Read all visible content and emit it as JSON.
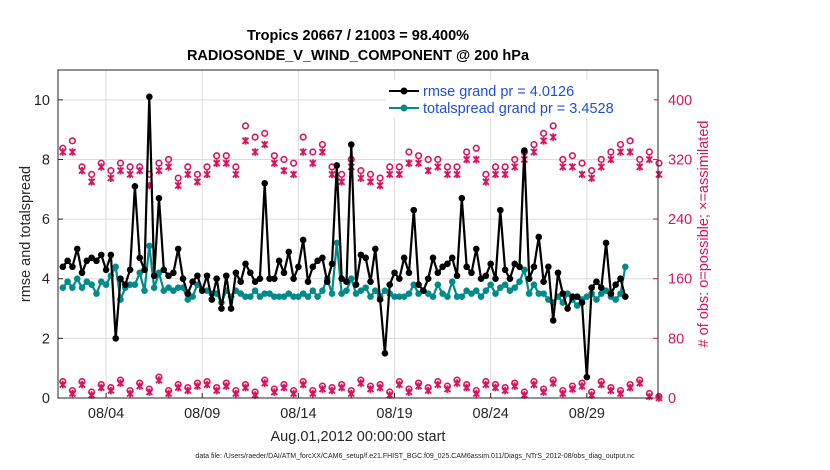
{
  "chart_data": {
    "type": "line",
    "title": "Tropics 20667 / 21003 = 98.400%",
    "subtitle": "RADIOSONDE_V_WIND_COMPONENT @ 200 hPa",
    "xlabel": "Aug.01,2012 00:00:00 start",
    "ylabel_left": "rmse and totalspread",
    "ylabel_right": "# of obs: o=possible; ×=assimilated",
    "footer": "data file: /Users/raeder/DAI/ATM_forcXX/CAM6_setup/f.e21.FHIST_BGC.f09_025.CAM6assim.011/Diags_NTrS_2012-08/obs_diag_output.nc",
    "xlim": [
      1,
      32.2
    ],
    "ylim_left": [
      0,
      11
    ],
    "ylim_right": [
      0,
      440
    ],
    "x_ticks": [
      3.5,
      8.5,
      13.5,
      18.5,
      23.5,
      28.5
    ],
    "x_tick_labels": [
      "08/04",
      "08/09",
      "08/14",
      "08/19",
      "08/24",
      "08/29"
    ],
    "y_ticks_left": [
      0,
      2,
      4,
      6,
      8,
      10
    ],
    "y_tick_labels_left": [
      "0",
      "2",
      "4",
      "6",
      "8",
      "10"
    ],
    "y_ticks_right": [
      0,
      80,
      160,
      240,
      320,
      400
    ],
    "y_tick_labels_right": [
      "0",
      "80",
      "160",
      "240",
      "320",
      "400"
    ],
    "x_start": 1.25,
    "x_step": 0.25,
    "colors": {
      "rmse": "#000000",
      "spread": "#008b8b",
      "obs": "#d6145f",
      "right_axis": "#d6145f",
      "legend_text": "#1f4fd6"
    },
    "series": [
      {
        "name": "rmse grand pr = 4.0126",
        "values": [
          4.4,
          4.6,
          4.4,
          5.0,
          4.2,
          4.6,
          4.7,
          4.6,
          4.8,
          4.3,
          4.8,
          2.0,
          4.0,
          3.8,
          4.3,
          7.1,
          4.7,
          4.3,
          10.1,
          4.1,
          6.7,
          4.3,
          4.1,
          4.2,
          5.0,
          4.0,
          3.5,
          3.9,
          4.1,
          3.6,
          4.1,
          3.3,
          4.0,
          3.0,
          4.1,
          3.0,
          4.2,
          3.9,
          4.5,
          4.2,
          3.9,
          4.0,
          7.2,
          4.0,
          4.0,
          4.6,
          4.2,
          4.9,
          4.0,
          4.4,
          5.3,
          3.9,
          4.4,
          4.6,
          4.7,
          3.9,
          4.5,
          7.8,
          4.0,
          3.9,
          8.5,
          3.8,
          4.8,
          4.7,
          3.9,
          5.0,
          3.3,
          1.5,
          3.8,
          4.2,
          4.0,
          4.7,
          4.2,
          6.3,
          3.8,
          3.6,
          4.0,
          4.7,
          4.2,
          4.4,
          4.5,
          4.7,
          4.1,
          6.7,
          4.4,
          4.2,
          5.0,
          4.0,
          4.1,
          4.5,
          4.0,
          6.3,
          4.3,
          4.0,
          4.5,
          4.4,
          8.3,
          4.0,
          4.4,
          5.4,
          3.9,
          4.4,
          2.6,
          4.2,
          3.5,
          3.0,
          3.4,
          3.4,
          3.2,
          0.7,
          3.7,
          3.9,
          3.7,
          5.2,
          3.5,
          3.8,
          4.0,
          3.4
        ]
      },
      {
        "name": "totalspread grand pr = 3.4528",
        "values": [
          3.7,
          3.9,
          3.7,
          4.0,
          3.7,
          3.9,
          3.8,
          3.5,
          3.9,
          3.8,
          4.1,
          4.4,
          3.3,
          3.7,
          3.8,
          3.8,
          4.2,
          3.6,
          5.1,
          3.7,
          4.2,
          3.6,
          3.7,
          3.6,
          3.7,
          3.7,
          3.3,
          3.4,
          3.8,
          3.6,
          3.6,
          3.5,
          3.5,
          3.2,
          3.6,
          3.4,
          3.6,
          3.5,
          3.4,
          3.4,
          3.6,
          3.4,
          3.5,
          3.5,
          3.4,
          3.4,
          3.4,
          3.5,
          3.4,
          3.4,
          3.5,
          3.4,
          3.6,
          3.4,
          3.6,
          4.0,
          3.5,
          5.2,
          3.5,
          3.6,
          4.0,
          3.5,
          3.6,
          3.7,
          3.4,
          3.6,
          3.4,
          3.6,
          3.5,
          3.4,
          3.4,
          3.4,
          3.5,
          3.8,
          3.5,
          3.6,
          3.5,
          3.4,
          3.8,
          3.5,
          3.4,
          3.9,
          3.4,
          3.4,
          3.6,
          3.5,
          3.6,
          3.4,
          3.6,
          3.8,
          3.5,
          3.7,
          3.8,
          3.6,
          3.7,
          3.9,
          4.3,
          3.5,
          3.8,
          3.5,
          3.5,
          3.3,
          3.2,
          3.4,
          3.2,
          3.5,
          3.3,
          3.1,
          3.3,
          3.4,
          3.5,
          3.3,
          3.5,
          3.6,
          3.4,
          3.3,
          3.5,
          4.4
        ]
      }
    ],
    "obs_x_start": 1.25,
    "obs_x_step": 0.5,
    "obs_possible_high": [
      335,
      345,
      310,
      300,
      315,
      305,
      315,
      310,
      310,
      300,
      315,
      320,
      295,
      310,
      300,
      310,
      325,
      325,
      310,
      365,
      350,
      355,
      325,
      320,
      315,
      350,
      330,
      340,
      310,
      300,
      320,
      305,
      300,
      295,
      310,
      310,
      330,
      325,
      320,
      320,
      310,
      310,
      330,
      335,
      300,
      310,
      310,
      320,
      330,
      340,
      355,
      365,
      320,
      325,
      315,
      305,
      320,
      330,
      340,
      345,
      320,
      330,
      315
    ],
    "obs_assimilated_high": [
      330,
      330,
      305,
      290,
      310,
      295,
      305,
      300,
      305,
      285,
      305,
      310,
      285,
      300,
      290,
      300,
      315,
      315,
      300,
      345,
      330,
      340,
      315,
      305,
      300,
      330,
      315,
      330,
      300,
      290,
      310,
      295,
      290,
      285,
      300,
      300,
      315,
      315,
      305,
      310,
      300,
      300,
      320,
      320,
      290,
      300,
      300,
      310,
      320,
      330,
      345,
      350,
      310,
      310,
      300,
      295,
      310,
      320,
      330,
      330,
      310,
      320,
      300
    ],
    "obs_possible_low": [
      22,
      10,
      22,
      8,
      18,
      14,
      24,
      10,
      20,
      12,
      28,
      10,
      18,
      14,
      20,
      22,
      14,
      20,
      10,
      18,
      8,
      24,
      12,
      18,
      10,
      22,
      10,
      16,
      14,
      18,
      10,
      24,
      16,
      18,
      8,
      22,
      12,
      20,
      14,
      22,
      16,
      24,
      18,
      10,
      22,
      18,
      14,
      20,
      8,
      22,
      12,
      24,
      10,
      16,
      20,
      8,
      22,
      14,
      10,
      18,
      24,
      6,
      2
    ],
    "obs_assimilated_low": [
      18,
      6,
      18,
      4,
      14,
      10,
      20,
      6,
      16,
      8,
      24,
      6,
      14,
      10,
      16,
      18,
      10,
      16,
      6,
      14,
      4,
      20,
      8,
      14,
      6,
      18,
      6,
      12,
      10,
      14,
      6,
      20,
      12,
      14,
      4,
      18,
      8,
      16,
      10,
      18,
      12,
      20,
      14,
      6,
      18,
      14,
      10,
      16,
      4,
      18,
      8,
      20,
      6,
      12,
      16,
      4,
      18,
      10,
      6,
      14,
      20,
      2,
      0
    ]
  }
}
